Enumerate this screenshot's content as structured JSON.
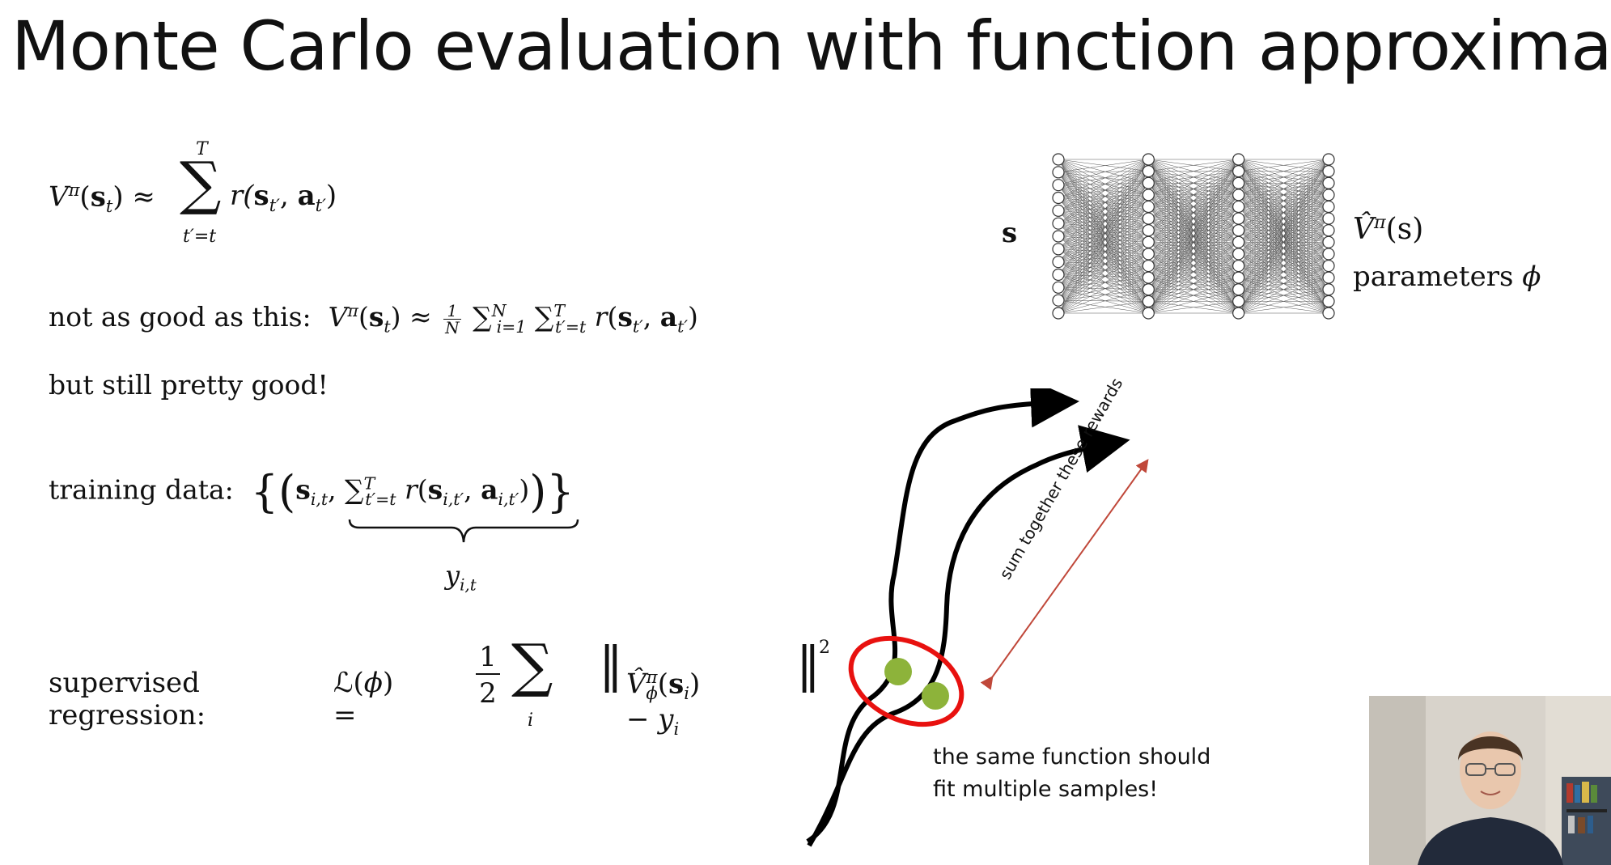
{
  "slide": {
    "title": "Monte Carlo evaluation with function approximation"
  },
  "equations": {
    "eq1_lhs": "V",
    "eq1_lhs_sup": "π",
    "eq1_lhs_arg": "(",
    "eq1_s": "s",
    "eq1_t": "t",
    "eq1_close": ") ≈",
    "eq1_sum_top": "T",
    "eq1_sum_bottom": "t′=t",
    "eq1_rhs": "r(",
    "not_as_good_text": "not as good as this:",
    "still_good": "but still pretty good!",
    "training_text": "training data:",
    "y_label": "y",
    "y_sub": "i,t",
    "supervised_text": "supervised regression:"
  },
  "network": {
    "input_label": "s",
    "output_label": "V̂",
    "output_sup": "π",
    "output_arg": "(s)",
    "params_label": "parameters",
    "params_symbol": "ϕ",
    "layer_nodes": [
      13,
      14,
      14,
      14
    ]
  },
  "diagram": {
    "rotated_label": "sum together these rewards",
    "note_line1": "the same function should",
    "note_line2": "fit multiple samples!",
    "colors": {
      "ellipse": "#e8110f",
      "dots": "#8db33a",
      "arrow_range": "#c0483a",
      "curves": "#000000"
    }
  }
}
